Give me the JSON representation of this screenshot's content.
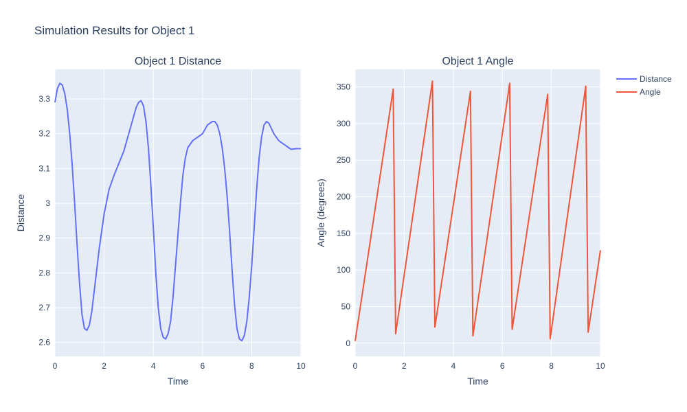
{
  "title": "Simulation Results for Object 1",
  "colors": {
    "distance": "#636efa",
    "angle": "#ef553b",
    "plot_bg": "#e5ecf6",
    "text": "#2a3f5f"
  },
  "legend": {
    "placement": "top-right",
    "items": [
      "Distance",
      "Angle"
    ]
  },
  "chart_data": [
    {
      "type": "line",
      "title": "Object 1 Distance",
      "xlabel": "Time",
      "ylabel": "Distance",
      "xlim": [
        0,
        10
      ],
      "ylim": [
        2.56,
        3.385
      ],
      "grid": true,
      "xticks": [
        0,
        2,
        4,
        6,
        8,
        10
      ],
      "xtick_labels": [
        "0",
        "2",
        "4",
        "6",
        "8",
        "10"
      ],
      "yticks": [
        2.6,
        2.7,
        2.8,
        2.9,
        3.0,
        3.1,
        3.2,
        3.3
      ],
      "ytick_labels": [
        "2.6",
        "2.7",
        "2.8",
        "2.9",
        "3",
        "3.1",
        "3.2",
        "3.3"
      ],
      "series": [
        {
          "name": "Distance",
          "x": [
            0,
            0.1,
            0.2,
            0.3,
            0.4,
            0.5,
            0.6,
            0.7,
            0.8,
            0.9,
            1.0,
            1.1,
            1.2,
            1.3,
            1.4,
            1.5,
            1.6,
            1.7,
            1.8,
            1.9,
            2.0,
            2.2,
            2.4,
            2.6,
            2.8,
            3.0,
            3.2,
            3.3,
            3.4,
            3.5,
            3.6,
            3.7,
            3.8,
            3.9,
            4.0,
            4.1,
            4.2,
            4.3,
            4.4,
            4.5,
            4.6,
            4.7,
            4.8,
            4.9,
            5.0,
            5.1,
            5.2,
            5.3,
            5.4,
            5.5,
            5.6,
            5.7,
            5.8,
            5.9,
            6.0,
            6.2,
            6.4,
            6.5,
            6.6,
            6.7,
            6.8,
            6.9,
            7.0,
            7.1,
            7.2,
            7.3,
            7.4,
            7.5,
            7.6,
            7.7,
            7.8,
            7.9,
            8.0,
            8.1,
            8.2,
            8.3,
            8.4,
            8.5,
            8.6,
            8.7,
            8.8,
            8.9,
            9.0,
            9.1,
            9.2,
            9.3,
            9.4,
            9.5,
            9.6,
            9.8,
            10.0
          ],
          "y": [
            3.29,
            3.33,
            3.345,
            3.34,
            3.315,
            3.27,
            3.2,
            3.11,
            3.0,
            2.88,
            2.77,
            2.68,
            2.64,
            2.635,
            2.65,
            2.69,
            2.75,
            2.81,
            2.87,
            2.92,
            2.97,
            3.04,
            3.08,
            3.115,
            3.15,
            3.2,
            3.25,
            3.275,
            3.29,
            3.295,
            3.28,
            3.235,
            3.16,
            3.05,
            2.93,
            2.8,
            2.7,
            2.64,
            2.615,
            2.61,
            2.625,
            2.66,
            2.73,
            2.82,
            2.91,
            3.0,
            3.08,
            3.13,
            3.16,
            3.17,
            3.18,
            3.185,
            3.19,
            3.195,
            3.2,
            3.225,
            3.235,
            3.235,
            3.225,
            3.2,
            3.16,
            3.1,
            3.02,
            2.92,
            2.81,
            2.71,
            2.64,
            2.61,
            2.605,
            2.62,
            2.66,
            2.73,
            2.82,
            2.93,
            3.04,
            3.13,
            3.19,
            3.225,
            3.235,
            3.23,
            3.215,
            3.2,
            3.19,
            3.18,
            3.175,
            3.17,
            3.165,
            3.16,
            3.155,
            3.157,
            3.157
          ]
        }
      ]
    },
    {
      "type": "line",
      "title": "Object 1 Angle",
      "xlabel": "Time",
      "ylabel": "Angle (degrees)",
      "xlim": [
        0,
        10
      ],
      "ylim": [
        -18,
        374
      ],
      "grid": true,
      "xticks": [
        0,
        2,
        4,
        6,
        8,
        10
      ],
      "xtick_labels": [
        "0",
        "2",
        "4",
        "6",
        "8",
        "10"
      ],
      "yticks": [
        0,
        50,
        100,
        150,
        200,
        250,
        300,
        350
      ],
      "ytick_labels": [
        "0",
        "50",
        "100",
        "150",
        "200",
        "250",
        "300",
        "350"
      ],
      "series": [
        {
          "name": "Angle",
          "x": [
            0,
            1.55,
            1.65,
            3.15,
            3.25,
            4.7,
            4.8,
            6.3,
            6.4,
            7.85,
            7.95,
            9.4,
            9.5,
            10.0
          ],
          "y": [
            3,
            347,
            13,
            358,
            22,
            344,
            10,
            355,
            19,
            340,
            6,
            351,
            15,
            127
          ]
        }
      ]
    }
  ]
}
